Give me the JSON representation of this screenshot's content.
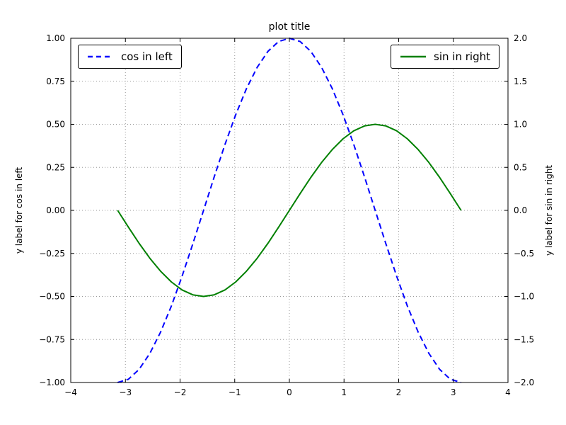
{
  "title": "plot title",
  "colors": {
    "cos": "#0000ff",
    "sin": "#008000",
    "grid": "#999999",
    "frame": "#000000",
    "background": "#ffffff"
  },
  "chart_data": {
    "type": "line",
    "title": "plot title",
    "xlabel": "",
    "ylabel_left": "y label for cos in left",
    "ylabel_right": "y label for sin in right",
    "xlim": [
      -4,
      4
    ],
    "ylim_left": [
      -1,
      1
    ],
    "ylim_right": [
      -2,
      2
    ],
    "grid": true,
    "x_ticks": {
      "values": [
        -4,
        -3,
        -2,
        -1,
        0,
        1,
        2,
        3,
        4
      ],
      "labels": [
        "−4",
        "−3",
        "−2",
        "−1",
        "0",
        "1",
        "2",
        "3",
        "4"
      ]
    },
    "y_left_ticks": {
      "values": [
        -1,
        -0.75,
        -0.5,
        -0.25,
        0,
        0.25,
        0.5,
        0.75,
        1
      ],
      "labels": [
        "−1.00",
        "−0.75",
        "−0.50",
        "−0.25",
        "0.00",
        "0.25",
        "0.50",
        "0.75",
        "1.00"
      ]
    },
    "y_right_ticks": {
      "values": [
        -2,
        -1.5,
        -1,
        -0.5,
        0,
        0.5,
        1,
        1.5,
        2
      ],
      "labels": [
        "−2.0",
        "−1.5",
        "−1.0",
        "−0.5",
        "0.0",
        "0.5",
        "1.0",
        "1.5",
        "2.0"
      ]
    },
    "x": [
      -3.1416,
      -2.9452,
      -2.7489,
      -2.5525,
      -2.3562,
      -2.1598,
      -1.9635,
      -1.7671,
      -1.5708,
      -1.3744,
      -1.1781,
      -0.9817,
      -0.7854,
      -0.589,
      -0.3927,
      -0.1963,
      0,
      0.1963,
      0.3927,
      0.589,
      0.7854,
      0.9817,
      1.1781,
      1.3744,
      1.5708,
      1.7671,
      1.9635,
      2.1598,
      2.3562,
      2.5525,
      2.7489,
      2.9452,
      3.1416
    ],
    "series": [
      {
        "name": "cos in left",
        "axis": "left",
        "color": "#0000ff",
        "style": "dashed",
        "values": [
          -1,
          -0.981,
          -0.924,
          -0.831,
          -0.707,
          -0.556,
          -0.383,
          -0.195,
          0,
          0.195,
          0.383,
          0.556,
          0.707,
          0.831,
          0.924,
          0.981,
          1,
          0.981,
          0.924,
          0.831,
          0.707,
          0.556,
          0.383,
          0.195,
          0,
          -0.195,
          -0.383,
          -0.556,
          -0.707,
          -0.831,
          -0.924,
          -0.981,
          -1
        ]
      },
      {
        "name": "sin in right",
        "axis": "right",
        "color": "#008000",
        "style": "solid",
        "values": [
          0,
          -0.195,
          -0.383,
          -0.556,
          -0.707,
          -0.831,
          -0.924,
          -0.981,
          -1,
          -0.981,
          -0.924,
          -0.831,
          -0.707,
          -0.556,
          -0.383,
          -0.195,
          0,
          0.195,
          0.383,
          0.556,
          0.707,
          0.831,
          0.924,
          0.981,
          1,
          0.981,
          0.924,
          0.831,
          0.707,
          0.556,
          0.383,
          0.195,
          0
        ]
      }
    ],
    "legends": [
      {
        "label": "cos in left",
        "position": "upper left"
      },
      {
        "label": "sin in right",
        "position": "upper right"
      }
    ]
  }
}
